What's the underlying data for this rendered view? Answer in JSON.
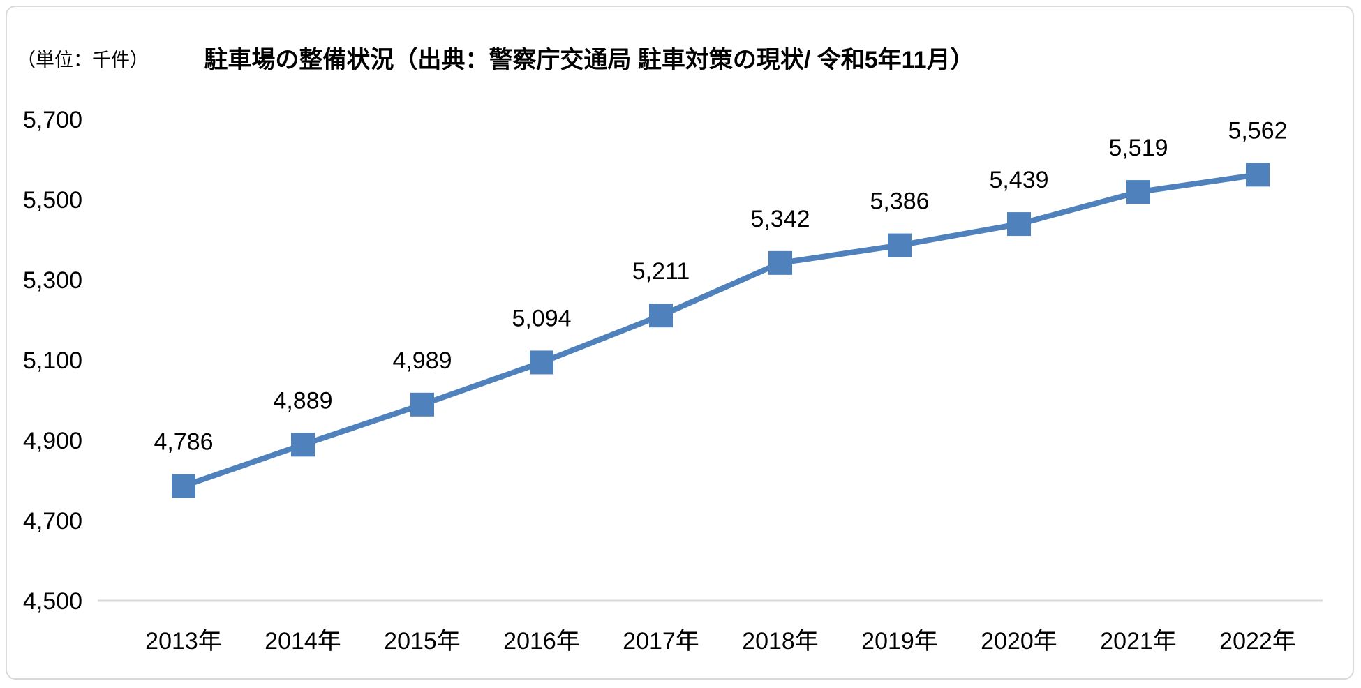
{
  "header": {
    "unit_label": "（単位：千件）",
    "title": "駐車場の整備状況（出典：警察庁交通局 駐車対策の現状/ 令和5年11月）"
  },
  "chart_data": {
    "type": "line",
    "title": "駐車場の整備状況（出典：警察庁交通局 駐車対策の現状/ 令和5年11月）",
    "unit_label": "（単位：千件）",
    "categories": [
      "2013年",
      "2014年",
      "2015年",
      "2016年",
      "2017年",
      "2018年",
      "2019年",
      "2020年",
      "2021年",
      "2022年"
    ],
    "values": [
      4786,
      4889,
      4989,
      5094,
      5211,
      5342,
      5386,
      5439,
      5519,
      5562
    ],
    "data_labels": [
      "4,786",
      "4,889",
      "4,989",
      "5,094",
      "5,211",
      "5,342",
      "5,386",
      "5,439",
      "5,519",
      "5,562"
    ],
    "xlabel": "",
    "ylabel": "",
    "ylim": [
      4500,
      5700
    ],
    "y_ticks": [
      4500,
      4700,
      4900,
      5100,
      5300,
      5500,
      5700
    ],
    "y_tick_labels": [
      "4,500",
      "4,700",
      "4,900",
      "5,100",
      "5,300",
      "5,500",
      "5,700"
    ],
    "grid": false,
    "legend": "none",
    "marker": "square",
    "line_color": "#4f81bd",
    "axis_line_color": "#d9d9d9",
    "text_color": "#000000"
  }
}
